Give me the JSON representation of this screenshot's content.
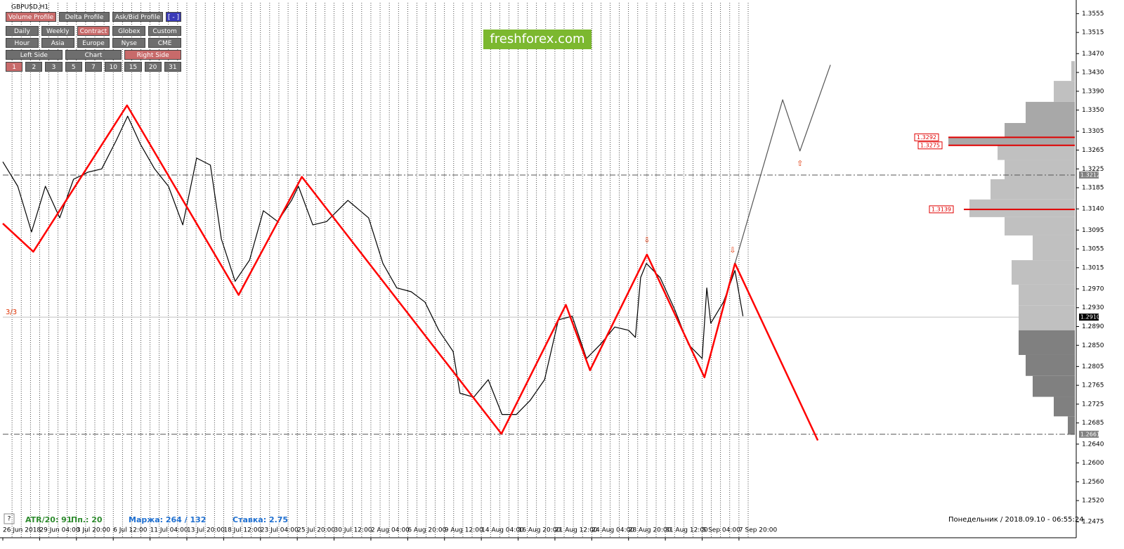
{
  "chart_data": {
    "type": "line",
    "title": "GBPUSD,H1",
    "xlim": [
      0,
      1864
    ],
    "ylim": [
      1.2441,
      1.3578
    ],
    "xticks": [
      {
        "value": 0,
        "label": "26 Jun 2018"
      },
      {
        "value": 64,
        "label": "29 Jun 04:00"
      },
      {
        "value": 128,
        "label": "3 Jul 20:00"
      },
      {
        "value": 192,
        "label": "6 Jul 12:00"
      },
      {
        "value": 256,
        "label": "11 Jul 04:00"
      },
      {
        "value": 320,
        "label": "13 Jul 20:00"
      },
      {
        "value": 384,
        "label": "18 Jul 12:00"
      },
      {
        "value": 448,
        "label": "23 Jul 04:00"
      },
      {
        "value": 512,
        "label": "25 Jul 20:00"
      },
      {
        "value": 576,
        "label": "30 Jul 12:00"
      },
      {
        "value": 640,
        "label": "2 Aug 04:00"
      },
      {
        "value": 704,
        "label": "6 Aug 20:00"
      },
      {
        "value": 768,
        "label": "9 Aug 12:00"
      },
      {
        "value": 832,
        "label": "14 Aug 04:00"
      },
      {
        "value": 896,
        "label": "16 Aug 20:00"
      },
      {
        "value": 960,
        "label": "21 Aug 12:00"
      },
      {
        "value": 1024,
        "label": "24 Aug 04:00"
      },
      {
        "value": 1088,
        "label": "28 Aug 20:00"
      },
      {
        "value": 1152,
        "label": "31 Aug 12:00"
      },
      {
        "value": 1216,
        "label": "5 Sep 04:00"
      },
      {
        "value": 1280,
        "label": "7 Sep 20:00"
      }
    ],
    "yticks": [
      1.3555,
      1.3515,
      {
        "value": 1.347,
        "label": "1.3470"
      },
      {
        "value": 1.343,
        "label": "1.3430"
      },
      {
        "value": 1.339,
        "label": "1.3390"
      },
      {
        "value": 1.335,
        "label": "1.3350"
      },
      1.3305,
      1.3265,
      1.3225,
      1.3185,
      {
        "value": 1.314,
        "label": "1.3140"
      },
      1.3095,
      1.3055,
      1.3015,
      {
        "value": 1.297,
        "label": "1.2970"
      },
      {
        "value": 1.293,
        "label": "1.2930"
      },
      {
        "value": 1.289,
        "label": "1.2890"
      },
      {
        "value": 1.285,
        "label": "1.2850"
      },
      1.2805,
      1.2765,
      1.2725,
      1.2685,
      {
        "value": 1.264,
        "label": "1.2640"
      },
      {
        "value": 1.26,
        "label": "1.2600"
      },
      {
        "value": 1.256,
        "label": "1.2560"
      },
      {
        "value": 1.252,
        "label": "1.2520"
      },
      1.2475
    ],
    "series": [
      {
        "color": "#000000",
        "x": [
          0,
          26,
          50,
          74,
          99,
          123,
          148,
          172,
          197,
          217,
          239,
          264,
          288,
          313,
          337,
          361,
          380,
          404,
          429,
          453,
          478,
          502,
          514,
          539,
          563,
          600,
          636,
          661,
          685,
          710,
          734,
          758,
          783,
          795,
          819,
          844,
          868,
          893,
          917,
          942,
          966,
          990,
          1015,
          1039,
          1064,
          1088,
          1100,
          1109,
          1119,
          1143,
          1168,
          1192,
          1216,
          1224,
          1231,
          1253,
          1273,
          1287
        ],
        "values": [
          1.324,
          1.3188,
          1.3091,
          1.3188,
          1.3121,
          1.3203,
          1.3218,
          1.3225,
          1.3285,
          1.3337,
          1.3278,
          1.3225,
          1.3188,
          1.3106,
          1.3248,
          1.3233,
          1.3076,
          1.2986,
          1.3031,
          1.3136,
          1.3113,
          1.3158,
          1.3188,
          1.3106,
          1.3113,
          1.3158,
          1.3121,
          1.3024,
          1.2972,
          1.2964,
          1.2942,
          1.2882,
          1.2837,
          1.2748,
          1.274,
          1.2777,
          1.2703,
          1.2703,
          1.2733,
          1.2777,
          1.2904,
          1.2912,
          1.2822,
          1.2852,
          1.2889,
          1.2882,
          1.2867,
          1.2994,
          1.3024,
          1.2994,
          1.2927,
          1.2852,
          1.2822,
          1.2972,
          1.2897,
          1.2942,
          1.3009,
          1.2912
        ]
      },
      {
        "color": "#ff0000",
        "x": [
          0,
          53,
          216,
          410,
          520,
          867,
          979,
          1021,
          1120,
          1220,
          1273,
          1417
        ],
        "values": [
          1.3109,
          1.3049,
          1.336,
          1.2957,
          1.3208,
          1.2662,
          1.2936,
          1.2797,
          1.3043,
          1.2782,
          1.3024,
          1.2648
        ]
      },
      {
        "color": "#555555",
        "x": [
          1273,
          1356,
          1386,
          1439
        ],
        "values": [
          1.3024,
          1.3372,
          1.3263,
          1.3446
        ]
      }
    ],
    "annotations": [
      {
        "text": "⇩",
        "x": 1120,
        "y": 1.3073
      },
      {
        "text": "⇩",
        "x": 1269,
        "y": 1.3051
      },
      {
        "text": "⇧",
        "x": 1386,
        "y": 1.3236
      }
    ],
    "reference_lines": [
      1.3212,
      1.2661
    ],
    "current_price": {
      "value": 1.291,
      "label": "1.2910"
    },
    "volume_profile": {
      "xlim": [
        0,
        180
      ],
      "levels": [
        1.3434,
        1.339,
        1.3345,
        1.33,
        1.3285,
        1.3263,
        1.3225,
        1.3181,
        1.3139,
        1.3106,
        1.3061,
        1.3001,
        1.2957,
        1.2912,
        1.2852,
        1.2807,
        1.2763,
        1.2718,
        1.268
      ],
      "values": [
        5,
        30,
        70,
        100,
        180,
        110,
        100,
        120,
        150,
        100,
        60,
        90,
        80,
        80,
        80,
        70,
        60,
        30,
        10
      ],
      "colors": [
        "#c0c0c0",
        "#c0c0c0",
        "#a8a8a8",
        "#a8a8a8",
        "#a8a8a8",
        "#c0c0c0",
        "#c0c0c0",
        "#c0c0c0",
        "#c0c0c0",
        "#c0c0c0",
        "#c0c0c0",
        "#c0c0c0",
        "#c0c0c0",
        "#c0c0c0",
        "#808080",
        "#808080",
        "#808080",
        "#808080",
        "#808080"
      ],
      "highlight_levels": [
        1.3292,
        1.3275,
        1.3139
      ]
    }
  },
  "ui": {
    "buttons": [
      [
        {
          "label": "Volume Profile",
          "active": true
        },
        {
          "label": "Delta Profile"
        },
        {
          "label": "Ask/Bid Profile"
        },
        {
          "label": "[ - ]",
          "blue": true
        }
      ],
      [
        {
          "label": "Daily"
        },
        {
          "label": "Weekly"
        },
        {
          "label": "Contract",
          "active": true
        },
        {
          "label": "Globex"
        },
        {
          "label": "Custom"
        }
      ],
      [
        {
          "label": "Hour"
        },
        {
          "label": "Asia"
        },
        {
          "label": "Europe"
        },
        {
          "label": "Nyse"
        },
        {
          "label": "CME"
        }
      ],
      [
        {
          "label": "Left Side"
        },
        {
          "label": "Chart"
        },
        {
          "label": "Right Side",
          "active": true
        }
      ],
      [
        {
          "label": "1",
          "active": true
        },
        {
          "label": "2"
        },
        {
          "label": "3"
        },
        {
          "label": "5"
        },
        {
          "label": "7"
        },
        {
          "label": "10"
        },
        {
          "label": "15"
        },
        {
          "label": "20"
        },
        {
          "label": "31"
        }
      ]
    ],
    "logo": "freshforex.com",
    "left_count": "3/3",
    "right_count": "3",
    "help": "?",
    "atr": "ATR/20: 91",
    "pp": "Пп.: 20",
    "margin": "Маржа: 264 / 132",
    "rate": "Ставка: 2.75",
    "datetime": "Понедельник  /  2018.09.10  -  06:55:24"
  }
}
